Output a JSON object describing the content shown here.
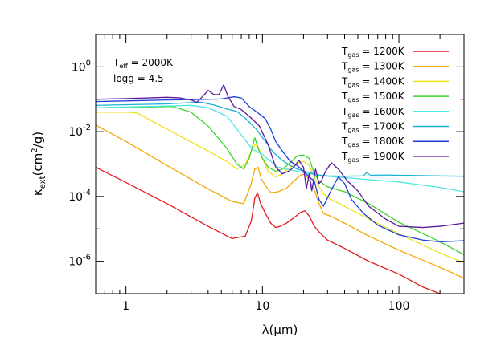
{
  "chart_data": {
    "type": "line",
    "title": "",
    "xlabel": "λ(μm)",
    "ylabel": "κext(cm²/g)",
    "xscale": "log",
    "yscale": "log",
    "xlim": [
      0.6,
      300
    ],
    "ylim": [
      1e-07,
      10
    ],
    "grid": false,
    "legend_position": "top-right",
    "x_ticks": [
      {
        "value": 1,
        "label": "1"
      },
      {
        "value": 10,
        "label": "10"
      },
      {
        "value": 100,
        "label": "100"
      }
    ],
    "y_ticks": [
      {
        "value": 1e-06,
        "base": "10",
        "exp": "-6"
      },
      {
        "value": 0.0001,
        "base": "10",
        "exp": "-4"
      },
      {
        "value": 0.01,
        "base": "10",
        "exp": "-2"
      },
      {
        "value": 1,
        "base": "10",
        "exp": "0"
      }
    ],
    "annotations": {
      "teff": {
        "main": "T",
        "sub": "eff",
        "rest": " = 2000K"
      },
      "logg": "logg = 4.5"
    },
    "series": [
      {
        "name": "Tgas = 1200K",
        "label_main": "T",
        "label_sub": "gas",
        "label_rest": " = 1200K",
        "color": "#e31a1c",
        "points": [
          [
            0.6,
            0.0008
          ],
          [
            1,
            0.00027
          ],
          [
            2,
            6e-05
          ],
          [
            4,
            1.2e-05
          ],
          [
            6,
            5e-06
          ],
          [
            7.5,
            6e-06
          ],
          [
            8.3,
            1.8e-05
          ],
          [
            8.8,
            9e-05
          ],
          [
            9.2,
            0.00013
          ],
          [
            9.7,
            6e-05
          ],
          [
            10.5,
            3e-05
          ],
          [
            11.5,
            1.5e-05
          ],
          [
            12.5,
            1.1e-05
          ],
          [
            13.5,
            1.2e-05
          ],
          [
            15,
            1.5e-05
          ],
          [
            17,
            2.2e-05
          ],
          [
            19,
            3.2e-05
          ],
          [
            20.5,
            3.6e-05
          ],
          [
            22,
            2.5e-05
          ],
          [
            24,
            1.2e-05
          ],
          [
            26,
            8e-06
          ],
          [
            30,
            4.5e-06
          ],
          [
            40,
            2.5e-06
          ],
          [
            60,
            1e-06
          ],
          [
            100,
            4e-07
          ],
          [
            150,
            1.6e-07
          ],
          [
            200,
            1e-07
          ]
        ]
      },
      {
        "name": "Tgas = 1300K",
        "label_main": "T",
        "label_sub": "gas",
        "label_rest": " = 1300K",
        "color": "#f6a800",
        "points": [
          [
            0.6,
            0.016
          ],
          [
            1,
            0.005
          ],
          [
            2,
            0.0009
          ],
          [
            4,
            0.00017
          ],
          [
            6,
            7e-05
          ],
          [
            7.3,
            6e-05
          ],
          [
            8.2,
            0.00022
          ],
          [
            8.8,
            0.0007
          ],
          [
            9.3,
            0.0008
          ],
          [
            9.8,
            0.00035
          ],
          [
            10.5,
            0.00022
          ],
          [
            11.5,
            0.00013
          ],
          [
            13,
            0.00014
          ],
          [
            15,
            0.00018
          ],
          [
            17,
            0.0003
          ],
          [
            19,
            0.00045
          ],
          [
            20.5,
            0.0005
          ],
          [
            22,
            0.00032
          ],
          [
            24,
            0.00016
          ],
          [
            26,
            6e-05
          ],
          [
            28,
            3e-05
          ],
          [
            32,
            2.4e-05
          ],
          [
            40,
            1.5e-05
          ],
          [
            60,
            6e-06
          ],
          [
            100,
            2.2e-06
          ],
          [
            200,
            6.5e-07
          ],
          [
            300,
            3e-07
          ]
        ]
      },
      {
        "name": "Tgas = 1400K",
        "label_main": "T",
        "label_sub": "gas",
        "label_rest": " = 1400K",
        "color": "#f0e21a",
        "points": [
          [
            0.6,
            0.04
          ],
          [
            1,
            0.04
          ],
          [
            1.2,
            0.038
          ],
          [
            2,
            0.012
          ],
          [
            4,
            0.0025
          ],
          [
            5.5,
            0.0012
          ],
          [
            6.5,
            0.0007
          ],
          [
            7.5,
            0.001
          ],
          [
            8.3,
            0.0025
          ],
          [
            8.8,
            0.004
          ],
          [
            9.3,
            0.0035
          ],
          [
            10,
            0.0015
          ],
          [
            11,
            0.0006
          ],
          [
            12.5,
            0.0004
          ],
          [
            14,
            0.0005
          ],
          [
            16,
            0.0008
          ],
          [
            18,
            0.0011
          ],
          [
            20,
            0.0012
          ],
          [
            22,
            0.0009
          ],
          [
            24,
            0.0004
          ],
          [
            26,
            0.0002
          ],
          [
            28,
            0.00012
          ],
          [
            32,
            8e-05
          ],
          [
            40,
            5e-05
          ],
          [
            60,
            2e-05
          ],
          [
            100,
            7e-06
          ],
          [
            200,
            1.8e-06
          ],
          [
            300,
            9e-07
          ]
        ]
      },
      {
        "name": "Tgas = 1500K",
        "label_main": "T",
        "label_sub": "gas",
        "label_rest": " = 1500K",
        "color": "#3cd42c",
        "points": [
          [
            0.6,
            0.055
          ],
          [
            1.5,
            0.058
          ],
          [
            2.2,
            0.06
          ],
          [
            3,
            0.04
          ],
          [
            4,
            0.015
          ],
          [
            5.5,
            0.003
          ],
          [
            6.5,
            0.001
          ],
          [
            7.3,
            0.0007
          ],
          [
            8,
            0.0015
          ],
          [
            8.8,
            0.0065
          ],
          [
            9.3,
            0.003
          ],
          [
            10,
            0.0015
          ],
          [
            11,
            0.0008
          ],
          [
            12.5,
            0.0006
          ],
          [
            14,
            0.0007
          ],
          [
            16,
            0.0011
          ],
          [
            18,
            0.0018
          ],
          [
            20,
            0.0019
          ],
          [
            22,
            0.0015
          ],
          [
            24,
            0.0005
          ],
          [
            26,
            0.0003
          ],
          [
            30,
            0.0002
          ],
          [
            40,
            0.00014
          ],
          [
            60,
            6e-05
          ],
          [
            100,
            1.6e-05
          ],
          [
            200,
            4e-06
          ],
          [
            300,
            1.6e-06
          ]
        ]
      },
      {
        "name": "Tgas = 1600K",
        "label_main": "T",
        "label_sub": "gas",
        "label_rest": " = 1600K",
        "color": "#4fe8e4",
        "points": [
          [
            0.6,
            0.055
          ],
          [
            2,
            0.062
          ],
          [
            3,
            0.065
          ],
          [
            4,
            0.055
          ],
          [
            5.5,
            0.03
          ],
          [
            7,
            0.008
          ],
          [
            8.5,
            0.0028
          ],
          [
            10,
            0.002
          ],
          [
            11.5,
            0.0012
          ],
          [
            13,
            0.0008
          ],
          [
            15,
            0.0007
          ],
          [
            18,
            0.0006
          ],
          [
            22,
            0.0005
          ],
          [
            26,
            0.00045
          ],
          [
            30,
            0.00042
          ],
          [
            40,
            0.00038
          ],
          [
            60,
            0.00033
          ],
          [
            100,
            0.00028
          ],
          [
            200,
            0.00019
          ],
          [
            300,
            0.00014
          ]
        ]
      },
      {
        "name": "Tgas = 1700K",
        "label_main": "T",
        "label_sub": "gas",
        "label_rest": " = 1700K",
        "color": "#18b4d8",
        "points": [
          [
            0.6,
            0.065
          ],
          [
            2,
            0.072
          ],
          [
            3.5,
            0.082
          ],
          [
            4.5,
            0.065
          ],
          [
            5.5,
            0.05
          ],
          [
            6.5,
            0.042
          ],
          [
            7.5,
            0.026
          ],
          [
            9,
            0.012
          ],
          [
            10.5,
            0.005
          ],
          [
            12,
            0.0023
          ],
          [
            14,
            0.0013
          ],
          [
            16,
            0.0009
          ],
          [
            18,
            0.0007
          ],
          [
            22,
            0.00055
          ],
          [
            26,
            0.00046
          ],
          [
            30,
            0.00043
          ],
          [
            40,
            0.00042
          ],
          [
            55,
            0.00043
          ],
          [
            58,
            0.00055
          ],
          [
            62,
            0.00045
          ],
          [
            80,
            0.00046
          ],
          [
            100,
            0.00045
          ],
          [
            200,
            0.00043
          ],
          [
            300,
            0.00042
          ]
        ]
      },
      {
        "name": "Tgas = 1800K",
        "label_main": "T",
        "label_sub": "gas",
        "label_rest": " = 1800K",
        "color": "#1b3fd8",
        "points": [
          [
            0.6,
            0.085
          ],
          [
            2,
            0.095
          ],
          [
            4,
            0.1
          ],
          [
            5,
            0.102
          ],
          [
            6.2,
            0.12
          ],
          [
            7,
            0.11
          ],
          [
            8,
            0.06
          ],
          [
            9.5,
            0.035
          ],
          [
            10.5,
            0.025
          ],
          [
            11.5,
            0.012
          ],
          [
            12.5,
            0.005
          ],
          [
            14,
            0.0025
          ],
          [
            16,
            0.0012
          ],
          [
            18,
            0.0009
          ],
          [
            20,
            0.0006
          ],
          [
            22,
            0.0004
          ],
          [
            24,
            0.0003
          ],
          [
            26,
            8e-05
          ],
          [
            28,
            5e-05
          ],
          [
            32,
            0.00016
          ],
          [
            36,
            0.0004
          ],
          [
            40,
            0.00025
          ],
          [
            45,
            8e-05
          ],
          [
            55,
            3e-05
          ],
          [
            70,
            1.3e-05
          ],
          [
            100,
            6.5e-06
          ],
          [
            150,
            4.5e-06
          ],
          [
            200,
            4e-06
          ],
          [
            300,
            4.3e-06
          ]
        ]
      },
      {
        "name": "Tgas = 1900K",
        "label_main": "T",
        "label_sub": "gas",
        "label_rest": " = 1900K",
        "color": "#5a1a99",
        "points": [
          [
            0.6,
            0.1
          ],
          [
            1,
            0.105
          ],
          [
            2,
            0.115
          ],
          [
            2.5,
            0.11
          ],
          [
            3,
            0.095
          ],
          [
            3.3,
            0.08
          ],
          [
            3.7,
            0.13
          ],
          [
            4,
            0.19
          ],
          [
            4.4,
            0.14
          ],
          [
            4.8,
            0.14
          ],
          [
            5.2,
            0.28
          ],
          [
            5.6,
            0.12
          ],
          [
            6.2,
            0.06
          ],
          [
            7,
            0.048
          ],
          [
            8,
            0.03
          ],
          [
            9.5,
            0.015
          ],
          [
            11,
            0.004
          ],
          [
            12.5,
            0.0008
          ],
          [
            14,
            0.0005
          ],
          [
            15.5,
            0.0006
          ],
          [
            17,
            0.0008
          ],
          [
            18.5,
            0.0013
          ],
          [
            20,
            0.0008
          ],
          [
            21,
            0.00017
          ],
          [
            22,
            0.0005
          ],
          [
            23,
            0.00015
          ],
          [
            24.5,
            0.0007
          ],
          [
            26,
            0.00025
          ],
          [
            27,
            0.0003
          ],
          [
            29,
            0.0006
          ],
          [
            32,
            0.0011
          ],
          [
            36,
            0.0007
          ],
          [
            42,
            0.0003
          ],
          [
            50,
            0.00015
          ],
          [
            60,
            5e-05
          ],
          [
            80,
            2e-05
          ],
          [
            100,
            1.2e-05
          ],
          [
            150,
            1.1e-05
          ],
          [
            200,
            1.2e-05
          ],
          [
            300,
            1.5e-05
          ]
        ]
      }
    ]
  }
}
